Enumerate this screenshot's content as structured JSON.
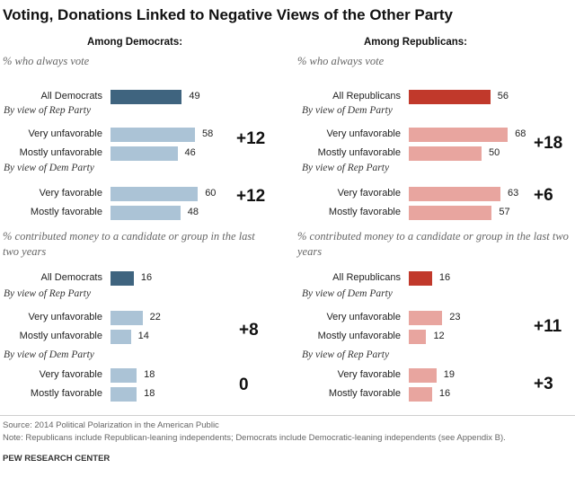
{
  "header": {
    "title": "Voting, Donations Linked to Negative Views of the Other Party",
    "dem_heading": "Among Democrats:",
    "rep_heading": "Among Republicans:"
  },
  "metrics": {
    "vote": "% who always vote",
    "donate": "% contributed money to a candidate or group in the last two years"
  },
  "colors": {
    "dem_dark": "#3f647f",
    "dem_light": "#abc3d6",
    "rep_dark": "#c1392b",
    "rep_light": "#e8a59f"
  },
  "chart_data": [
    {
      "type": "bar",
      "title": "% who always vote",
      "panel": "Among Democrats",
      "series": [
        {
          "category": "All Democrats",
          "value": 49,
          "group": ""
        },
        {
          "category": "Very unfavorable",
          "value": 58,
          "group": "By view of Rep Party"
        },
        {
          "category": "Mostly unfavorable",
          "value": 46,
          "group": "By view of Rep Party"
        },
        {
          "category": "Very favorable",
          "value": 60,
          "group": "By view of Dem Party"
        },
        {
          "category": "Mostly favorable",
          "value": 48,
          "group": "By view of Dem Party"
        }
      ],
      "differences": [
        "+12",
        "+12"
      ]
    },
    {
      "type": "bar",
      "title": "% who always vote",
      "panel": "Among Republicans",
      "series": [
        {
          "category": "All Republicans",
          "value": 56,
          "group": ""
        },
        {
          "category": "Very unfavorable",
          "value": 68,
          "group": "By view of Dem Party"
        },
        {
          "category": "Mostly unfavorable",
          "value": 50,
          "group": "By view of Dem Party"
        },
        {
          "category": "Very favorable",
          "value": 63,
          "group": "By view of Rep Party"
        },
        {
          "category": "Mostly favorable",
          "value": 57,
          "group": "By view of Rep Party"
        }
      ],
      "differences": [
        "+18",
        "+6"
      ]
    },
    {
      "type": "bar",
      "title": "% contributed money to a candidate or group in the last two years",
      "panel": "Among Democrats",
      "series": [
        {
          "category": "All Democrats",
          "value": 16,
          "group": ""
        },
        {
          "category": "Very unfavorable",
          "value": 22,
          "group": "By view of Rep Party"
        },
        {
          "category": "Mostly unfavorable",
          "value": 14,
          "group": "By view of Rep Party"
        },
        {
          "category": "Very favorable",
          "value": 18,
          "group": "By view of Dem Party"
        },
        {
          "category": "Mostly favorable",
          "value": 18,
          "group": "By view of Dem Party"
        }
      ],
      "differences": [
        "+8",
        "0"
      ]
    },
    {
      "type": "bar",
      "title": "% contributed money to a candidate or group in the last two years",
      "panel": "Among Republicans",
      "series": [
        {
          "category": "All Republicans",
          "value": 16,
          "group": ""
        },
        {
          "category": "Very unfavorable",
          "value": 23,
          "group": "By view of Dem Party"
        },
        {
          "category": "Mostly unfavorable",
          "value": 12,
          "group": "By view of Dem Party"
        },
        {
          "category": "Very favorable",
          "value": 19,
          "group": "By view of Rep Party"
        },
        {
          "category": "Mostly favorable",
          "value": 16,
          "group": "By view of Rep Party"
        }
      ],
      "differences": [
        "+11",
        "+3"
      ]
    }
  ],
  "footer": {
    "source": "Source: 2014 Political Polarization in the American Public",
    "note": "Note: Republicans include Republican-leaning independents; Democrats include Democratic-leaning independents (see Appendix B).",
    "credit": "PEW RESEARCH CENTER"
  }
}
